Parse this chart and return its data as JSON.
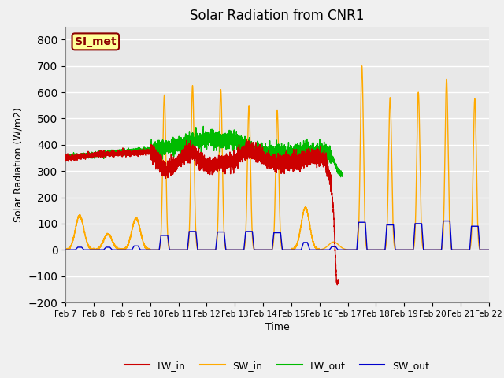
{
  "title": "Solar Radiation from CNR1",
  "xlabel": "Time",
  "ylabel": "Solar Radiation (W/m2)",
  "ylim": [
    -200,
    850
  ],
  "yticks": [
    -200,
    -100,
    0,
    100,
    200,
    300,
    400,
    500,
    600,
    700,
    800
  ],
  "xlim_days": [
    0,
    15
  ],
  "xtick_labels": [
    "Feb 7",
    "Feb 8",
    "Feb 9",
    "Feb 10",
    "Feb 11",
    "Feb 12",
    "Feb 13",
    "Feb 14",
    "Feb 15",
    "Feb 16",
    "Feb 17",
    "Feb 18",
    "Feb 19",
    "Feb 20",
    "Feb 21",
    "Feb 22"
  ],
  "xtick_positions": [
    0,
    1,
    2,
    3,
    4,
    5,
    6,
    7,
    8,
    9,
    10,
    11,
    12,
    13,
    14,
    15
  ],
  "bg_color": "#e8e8e8",
  "grid_color": "#ffffff",
  "fig_bg_color": "#f0f0f0",
  "legend_label": "SI_met",
  "legend_box_color": "#ffff99",
  "legend_box_edge": "#8B0000",
  "line_colors": {
    "LW_in": "#cc0000",
    "SW_in": "#ffaa00",
    "LW_out": "#00bb00",
    "SW_out": "#0000cc"
  },
  "line_width": 1.0,
  "sw_in_peaks": [
    130,
    60,
    120,
    590,
    625,
    610,
    550,
    530,
    160,
    30,
    700,
    580,
    600,
    650,
    575
  ],
  "sw_out_peaks": [
    10,
    10,
    15,
    55,
    70,
    68,
    70,
    65,
    28,
    12,
    105,
    95,
    100,
    110,
    90
  ],
  "lw_in_knots_x": [
    0,
    0.5,
    1.0,
    1.5,
    2.0,
    2.5,
    3.0,
    3.3,
    3.5,
    3.7,
    4.0,
    4.3,
    4.5,
    5.0,
    5.5,
    6.0,
    6.3,
    6.5,
    7.0,
    7.5,
    8.0,
    8.5,
    9.0,
    9.2,
    9.4,
    9.5,
    9.55,
    9.6,
    9.65
  ],
  "lw_in_knots_y": [
    350,
    355,
    362,
    365,
    368,
    370,
    372,
    340,
    300,
    310,
    340,
    370,
    375,
    320,
    330,
    340,
    370,
    380,
    350,
    330,
    335,
    345,
    355,
    340,
    260,
    140,
    0,
    -120,
    -120
  ],
  "lw_out_knots_x": [
    0,
    0.5,
    1.0,
    1.5,
    2.0,
    2.5,
    3.0,
    3.5,
    4.0,
    4.5,
    5.0,
    5.5,
    6.0,
    6.5,
    7.0,
    7.5,
    8.0,
    8.5,
    9.0,
    9.3,
    9.5,
    9.65,
    9.8
  ],
  "lw_out_knots_y": [
    355,
    358,
    362,
    368,
    373,
    376,
    380,
    390,
    400,
    415,
    425,
    415,
    420,
    385,
    375,
    370,
    368,
    372,
    375,
    370,
    340,
    300,
    285
  ],
  "lw_in_end": 9.67,
  "lw_out_end": 9.82
}
